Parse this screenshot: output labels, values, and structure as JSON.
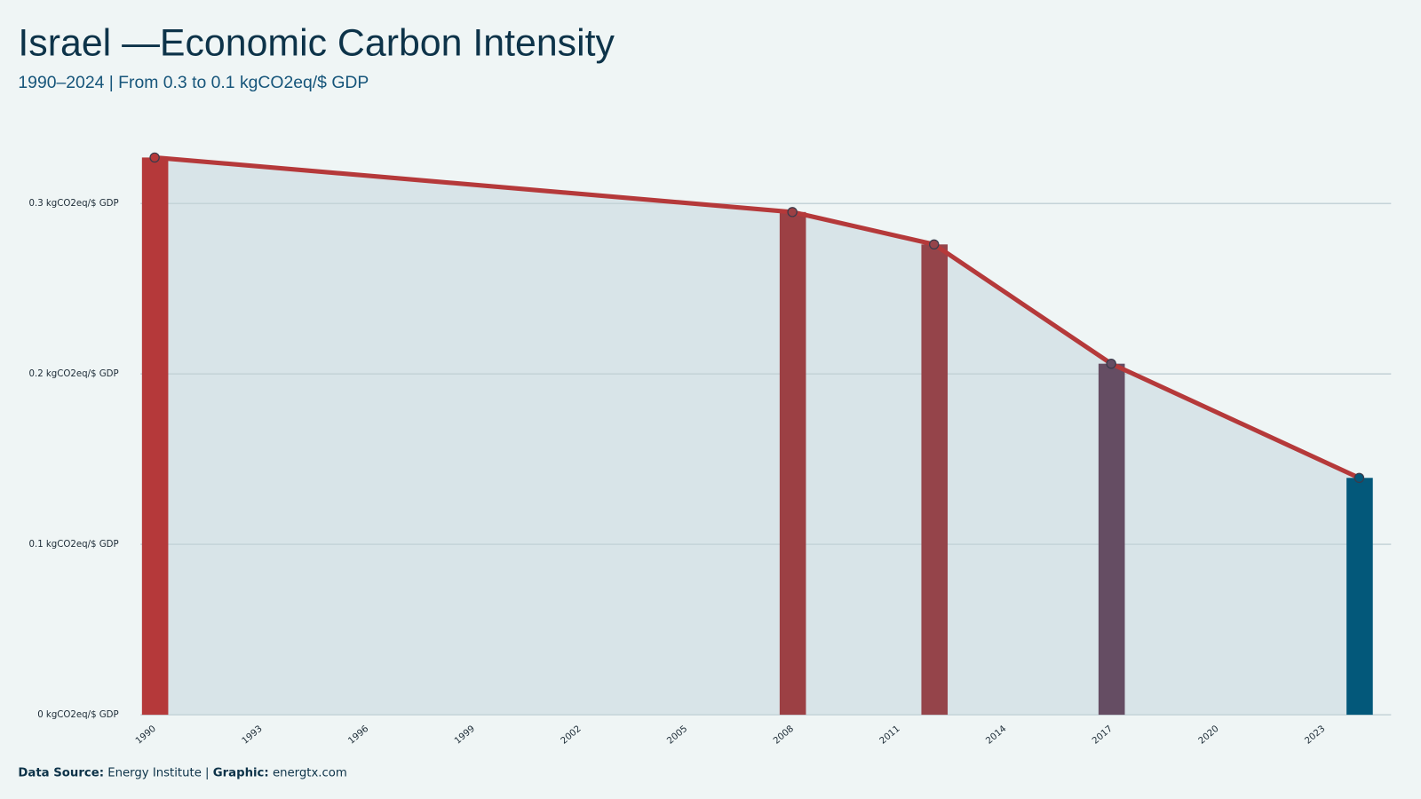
{
  "chart_data": {
    "type": "bar-line",
    "title": "Israel —Economic Carbon Intensity",
    "subtitle": "1990–2024 | From 0.3 to 0.1 kgCO2eq/$ GDP",
    "x": [
      1990,
      2008,
      2012,
      2017,
      2024
    ],
    "values": [
      0.327,
      0.295,
      0.276,
      0.206,
      0.139
    ],
    "colors": [
      "#b5393a",
      "#9c4044",
      "#95444a",
      "#654d63",
      "#03587a"
    ],
    "line_color": "#b5393a",
    "area_color": "#d8e4e8",
    "xlim": [
      1989.6,
      2024.9
    ],
    "xticks": [
      1990,
      1993,
      1996,
      1999,
      2002,
      2005,
      2008,
      2011,
      2014,
      2017,
      2020,
      2023
    ],
    "ylim": [
      0,
      0.345
    ],
    "yticks": [
      {
        "value": 0,
        "label": "0 kgCO2eq/$ GDP"
      },
      {
        "value": 0.1,
        "label": "0.1 kgCO2eq/$ GDP"
      },
      {
        "value": 0.2,
        "label": "0.2 kgCO2eq/$ GDP"
      },
      {
        "value": 0.3,
        "label": "0.3 kgCO2eq/$ GDP"
      }
    ],
    "grid": true,
    "source_label": "Data Source:",
    "source": "Energy Institute |",
    "credit_label": "Graphic:",
    "credit": "energtx.com"
  }
}
